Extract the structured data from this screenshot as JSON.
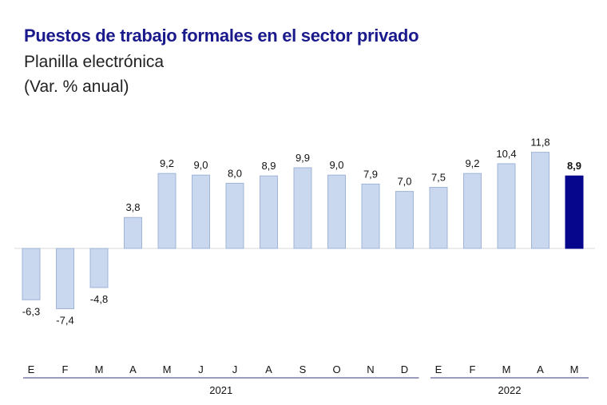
{
  "title": "Puestos de trabajo formales en el sector privado",
  "subtitle": "Planilla electrónica",
  "unit": "(Var. % anual)",
  "colors": {
    "bar": "#c9d8ee",
    "bar_edge": "#9fb4d6",
    "highlight": "#06068c",
    "axis": "#7a7aa8"
  },
  "chart_data": {
    "type": "bar",
    "title": "Puestos de trabajo formales en el sector privado",
    "subtitle": "Planilla electrónica",
    "ylabel": "(Var. % anual)",
    "categories": [
      "E",
      "F",
      "M",
      "A",
      "M",
      "J",
      "J",
      "A",
      "S",
      "O",
      "N",
      "D",
      "E",
      "F",
      "M",
      "A",
      "M"
    ],
    "values": [
      -6.3,
      -7.4,
      -4.8,
      3.8,
      9.2,
      9.0,
      8.0,
      8.9,
      9.9,
      9.0,
      7.9,
      7.0,
      7.5,
      9.2,
      10.4,
      11.8,
      8.9
    ],
    "value_labels": [
      "-6,3",
      "-7,4",
      "-4,8",
      "3,8",
      "9,2",
      "9,0",
      "8,0",
      "8,9",
      "9,9",
      "9,0",
      "7,9",
      "7,0",
      "7,5",
      "9,2",
      "10,4",
      "11,8",
      "8,9"
    ],
    "highlight_index": 16,
    "groups": [
      {
        "label": "2021",
        "start": 0,
        "end": 11
      },
      {
        "label": "2022",
        "start": 12,
        "end": 16
      }
    ],
    "ylim": [
      -12,
      16
    ],
    "grid": false
  }
}
